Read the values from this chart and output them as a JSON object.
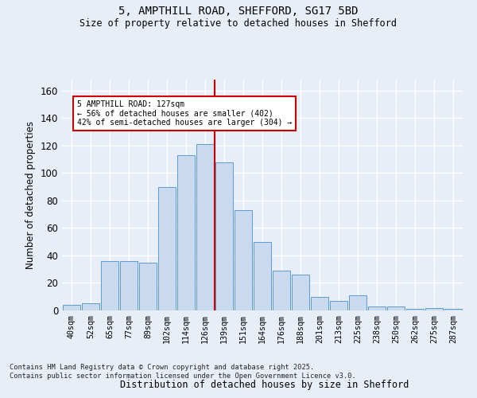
{
  "title1": "5, AMPTHILL ROAD, SHEFFORD, SG17 5BD",
  "title2": "Size of property relative to detached houses in Shefford",
  "xlabel": "Distribution of detached houses by size in Shefford",
  "ylabel": "Number of detached properties",
  "bins": [
    "40sqm",
    "52sqm",
    "65sqm",
    "77sqm",
    "89sqm",
    "102sqm",
    "114sqm",
    "126sqm",
    "139sqm",
    "151sqm",
    "164sqm",
    "176sqm",
    "188sqm",
    "201sqm",
    "213sqm",
    "225sqm",
    "238sqm",
    "250sqm",
    "262sqm",
    "275sqm",
    "287sqm"
  ],
  "values": [
    4,
    5,
    36,
    36,
    35,
    90,
    113,
    121,
    108,
    73,
    50,
    29,
    26,
    10,
    7,
    11,
    3,
    3,
    1,
    2,
    1
  ],
  "bar_color": "#c8d9f0",
  "bar_edge_color": "#5b9bd5",
  "vline_color": "#cc0000",
  "vline_x": 7.5,
  "annotation_text": "5 AMPTHILL ROAD: 127sqm\n← 56% of detached houses are smaller (402)\n42% of semi-detached houses are larger (304) →",
  "bg_color": "#e8eef8",
  "grid_color": "#ffffff",
  "footnote": "Contains HM Land Registry data © Crown copyright and database right 2025.\nContains public sector information licensed under the Open Government Licence v3.0.",
  "ylim_max": 168,
  "yticks": [
    0,
    20,
    40,
    60,
    80,
    100,
    120,
    140,
    160
  ]
}
